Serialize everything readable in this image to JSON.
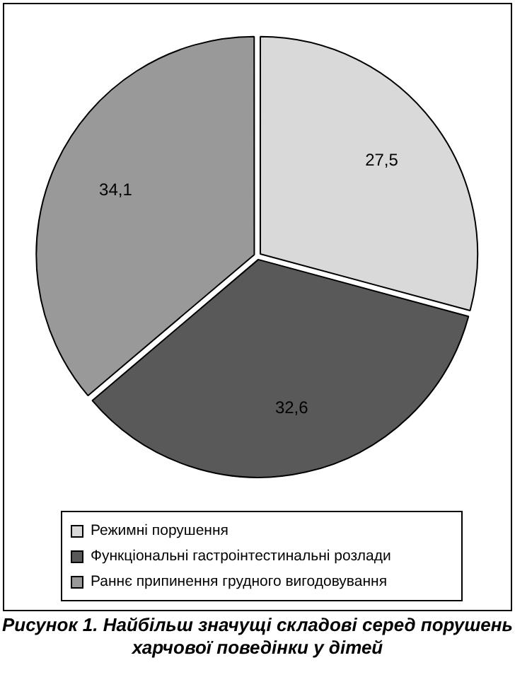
{
  "chart_data": {
    "type": "pie",
    "title": "Рисунок 1. Найбільш значущі складові серед порушень харчової поведінки у дітей",
    "categories": [
      "Режимні порушення",
      "Функціональні гастроінтестинальні розлади",
      "Раннє припинення грудного вигодовування"
    ],
    "values": [
      27.5,
      32.6,
      34.1
    ],
    "value_labels": [
      "27,5",
      "32,6",
      "34,1"
    ],
    "colors": [
      "#d9d9d9",
      "#595959",
      "#999999"
    ],
    "legend": "bottom"
  }
}
